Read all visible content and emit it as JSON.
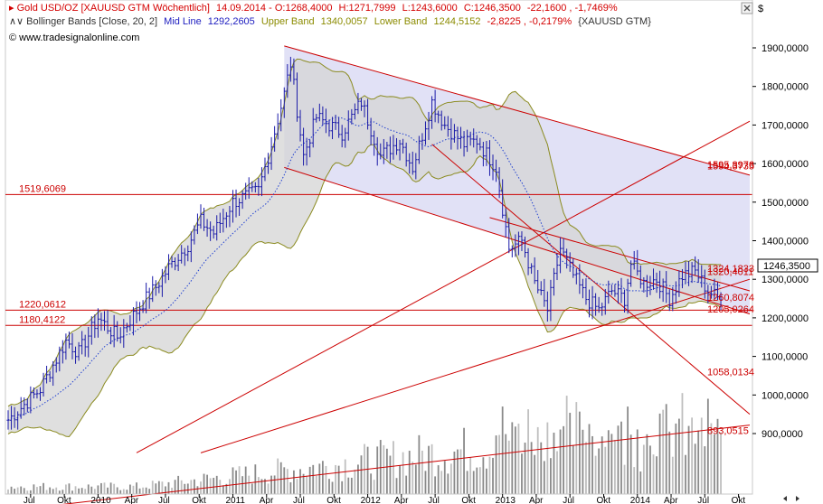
{
  "header": {
    "line1": {
      "instrument": "Gold USD/OZ [XAUUSD GTM Wöchentlich]",
      "date": "14.09.2014",
      "open": "O:1268,4000",
      "high": "H:1271,7999",
      "low": "L:1243,6000",
      "close": "C:1246,3500",
      "change": "-22,1600",
      "change_pct": "-1,7469%"
    },
    "line2": {
      "indicator": "Bollinger Bands [Close, 20, 2]",
      "mid_label": "Mid Line",
      "mid_value": "1292,2605",
      "upper_label": "Upper Band",
      "upper_value": "1340,0057",
      "lower_label": "Lower Band",
      "lower_value": "1244,5152",
      "change": "-2,8225",
      "change_pct": "-0,2179%",
      "symbol": "{XAUUSD GTM}"
    },
    "copyright": "© www.tradesignalonline.com"
  },
  "currency_symbol": "$",
  "colors": {
    "price_bar": "#1a1aa8",
    "band_fill": "#d4d4d4",
    "band_line": "#8b8b20",
    "mid_line": "#1f3fd0",
    "channel_fill": "#dcdcf4",
    "level_line": "#cc0000",
    "volume_bar": "#8a8a8a",
    "header_red": "#d40000",
    "header_blue": "#2020c0",
    "header_olive": "#8b8b00"
  },
  "chart_data": {
    "type": "bar",
    "title": "Gold USD/OZ [XAUUSD GTM Wöchentlich]",
    "y_range": [
      850,
      1950
    ],
    "y_ticks": [
      {
        "v": 900,
        "label": "900,0000"
      },
      {
        "v": 1000,
        "label": "1000,0000"
      },
      {
        "v": 1100,
        "label": "1100,0000"
      },
      {
        "v": 1200,
        "label": "1200,0000"
      },
      {
        "v": 1300,
        "label": "1300,0000"
      },
      {
        "v": 1400,
        "label": "1400,0000"
      },
      {
        "v": 1500,
        "label": "1500,0000"
      },
      {
        "v": 1600,
        "label": "1600,0000"
      },
      {
        "v": 1700,
        "label": "1700,0000"
      },
      {
        "v": 1800,
        "label": "1800,0000"
      },
      {
        "v": 1900,
        "label": "1900,0000"
      }
    ],
    "x_ticks": [
      "Jul",
      "Okt",
      "2010",
      "Apr",
      "Jul",
      "Okt",
      "2011",
      "Apr",
      "Jul",
      "Okt",
      "2012",
      "Apr",
      "Jul",
      "Okt",
      "2013",
      "Apr",
      "Jul",
      "Okt",
      "2014",
      "Apr",
      "Jul",
      "Okt"
    ],
    "price_anchors": [
      [
        0,
        935
      ],
      [
        10,
        1015
      ],
      [
        18,
        1140
      ],
      [
        22,
        1110
      ],
      [
        28,
        1200
      ],
      [
        34,
        1150
      ],
      [
        42,
        1240
      ],
      [
        46,
        1280
      ],
      [
        50,
        1330
      ],
      [
        56,
        1390
      ],
      [
        60,
        1450
      ],
      [
        64,
        1420
      ],
      [
        70,
        1500
      ],
      [
        78,
        1530
      ],
      [
        82,
        1650
      ],
      [
        86,
        1780
      ],
      [
        88,
        1860
      ],
      [
        92,
        1620
      ],
      [
        96,
        1720
      ],
      [
        104,
        1680
      ],
      [
        110,
        1760
      ],
      [
        116,
        1620
      ],
      [
        122,
        1660
      ],
      [
        126,
        1590
      ],
      [
        132,
        1760
      ],
      [
        136,
        1700
      ],
      [
        142,
        1650
      ],
      [
        146,
        1660
      ],
      [
        152,
        1590
      ],
      [
        156,
        1380
      ],
      [
        160,
        1400
      ],
      [
        164,
        1290
      ],
      [
        168,
        1220
      ],
      [
        172,
        1380
      ],
      [
        176,
        1310
      ],
      [
        180,
        1250
      ],
      [
        184,
        1220
      ],
      [
        188,
        1270
      ],
      [
        192,
        1250
      ],
      [
        194,
        1340
      ],
      [
        198,
        1290
      ],
      [
        202,
        1300
      ],
      [
        206,
        1250
      ],
      [
        210,
        1310
      ],
      [
        214,
        1320
      ],
      [
        218,
        1270
      ],
      [
        222,
        1246
      ]
    ],
    "levels": [
      {
        "value": 1519.6069,
        "label": "1519,6069",
        "pos": "left"
      },
      {
        "value": 1220.0612,
        "label": "1220,0612",
        "pos": "left"
      },
      {
        "value": 1180.4122,
        "label": "1180,4122",
        "pos": "left"
      }
    ],
    "right_labels": [
      {
        "value": 1598,
        "label": "1595,8976"
      },
      {
        "value": 1594,
        "label": "1594,3735"
      },
      {
        "value": 1329,
        "label": "1324,1833"
      },
      {
        "value": 1320,
        "label": "1320,4011"
      },
      {
        "value": 1254,
        "label": "1260,8074"
      },
      {
        "value": 1223,
        "label": "1205,0264"
      },
      {
        "value": 1060,
        "label": "1058,0134"
      },
      {
        "value": 908,
        "label": "893,0515"
      }
    ],
    "last_price": {
      "value": 1246.35,
      "label": "1246,3500"
    },
    "trendlines": [
      {
        "from": [
          86,
          1905
        ],
        "to": [
          231,
          1570
        ]
      },
      {
        "from": [
          86,
          1590
        ],
        "to": [
          231,
          1210
        ]
      },
      {
        "from": [
          40,
          850
        ],
        "to": [
          231,
          1710
        ]
      },
      {
        "from": [
          60,
          850
        ],
        "to": [
          231,
          1300
        ]
      },
      {
        "from": [
          0,
          700
        ],
        "to": [
          231,
          922
        ]
      },
      {
        "from": [
          132,
          1650
        ],
        "to": [
          231,
          950
        ]
      },
      {
        "from": [
          150,
          1460
        ],
        "to": [
          231,
          1270
        ]
      }
    ],
    "volume_range": [
      0,
      100
    ]
  }
}
